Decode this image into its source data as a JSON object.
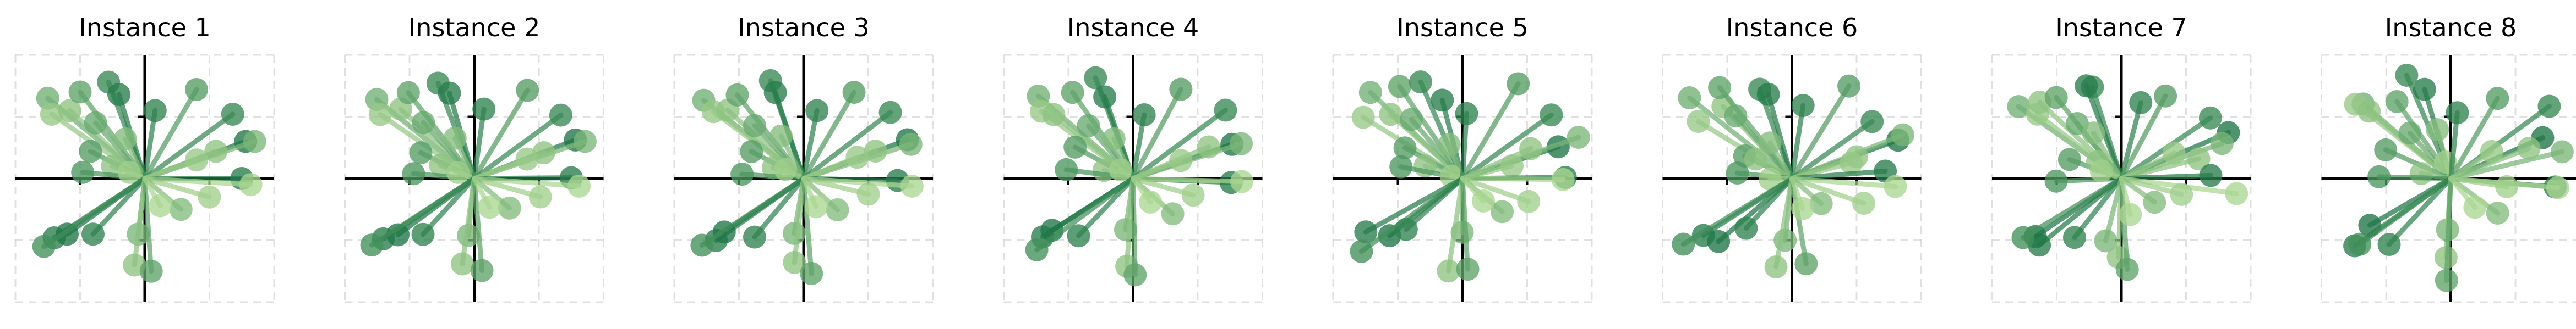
{
  "chart_data": [
    {
      "type": "scatter",
      "title": "Instance 1"
    },
    {
      "type": "scatter",
      "title": "Instance 2"
    },
    {
      "type": "scatter",
      "title": "Instance 3"
    },
    {
      "type": "scatter",
      "title": "Instance 4"
    },
    {
      "type": "scatter",
      "title": "Instance 5"
    },
    {
      "type": "scatter",
      "title": "Instance 6"
    },
    {
      "type": "scatter",
      "title": "Instance 7"
    },
    {
      "type": "scatter",
      "title": "Instance 8"
    }
  ],
  "shared": {
    "xlim": [
      -1.0,
      1.0
    ],
    "ylim": [
      -1.0,
      1.0
    ],
    "grid": true,
    "axes_through_origin": true,
    "points": [
      {
        "x": -0.75,
        "y": 0.65,
        "shade": 0.45
      },
      {
        "x": -0.72,
        "y": 0.52,
        "shade": 0.25
      },
      {
        "x": -0.58,
        "y": 0.55,
        "shade": 0.3
      },
      {
        "x": -0.5,
        "y": 0.7,
        "shade": 0.55
      },
      {
        "x": -0.28,
        "y": 0.78,
        "shade": 0.75
      },
      {
        "x": -0.2,
        "y": 0.68,
        "shade": 0.85
      },
      {
        "x": -0.38,
        "y": 0.45,
        "shade": 0.5
      },
      {
        "x": -0.42,
        "y": 0.22,
        "shade": 0.6
      },
      {
        "x": -0.15,
        "y": 0.32,
        "shade": 0.35
      },
      {
        "x": -0.25,
        "y": 0.1,
        "shade": 0.3
      },
      {
        "x": -0.48,
        "y": 0.05,
        "shade": 0.65
      },
      {
        "x": -0.12,
        "y": 0.05,
        "shade": 0.2
      },
      {
        "x": 0.08,
        "y": 0.55,
        "shade": 0.8
      },
      {
        "x": 0.4,
        "y": 0.72,
        "shade": 0.6
      },
      {
        "x": 0.68,
        "y": 0.52,
        "shade": 0.75
      },
      {
        "x": 0.78,
        "y": 0.3,
        "shade": 0.9
      },
      {
        "x": 0.85,
        "y": 0.3,
        "shade": 0.4
      },
      {
        "x": 0.55,
        "y": 0.22,
        "shade": 0.3
      },
      {
        "x": 0.4,
        "y": 0.15,
        "shade": 0.25
      },
      {
        "x": 0.75,
        "y": 0.0,
        "shade": 0.85
      },
      {
        "x": 0.82,
        "y": -0.05,
        "shade": 0.15
      },
      {
        "x": 0.5,
        "y": -0.15,
        "shade": 0.2
      },
      {
        "x": 0.28,
        "y": -0.25,
        "shade": 0.35
      },
      {
        "x": -0.7,
        "y": -0.48,
        "shade": 0.85
      },
      {
        "x": -0.6,
        "y": -0.45,
        "shade": 0.9
      },
      {
        "x": -0.78,
        "y": -0.55,
        "shade": 0.7
      },
      {
        "x": -0.4,
        "y": -0.45,
        "shade": 0.8
      },
      {
        "x": -0.05,
        "y": -0.45,
        "shade": 0.4
      },
      {
        "x": -0.08,
        "y": -0.7,
        "shade": 0.3
      },
      {
        "x": 0.05,
        "y": -0.75,
        "shade": 0.55
      },
      {
        "x": 0.12,
        "y": -0.22,
        "shade": 0.15
      }
    ]
  }
}
